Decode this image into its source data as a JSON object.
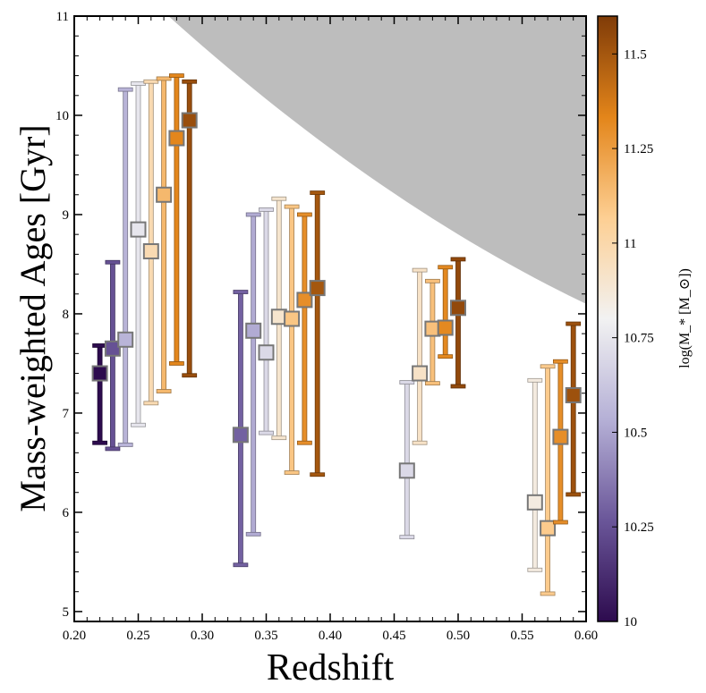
{
  "chart_data": {
    "type": "scatter",
    "title": "",
    "xlabel": "Redshift",
    "ylabel": "Mass-weighted Ages [Gyr]",
    "xlim": [
      0.2,
      0.6
    ],
    "ylim": [
      4.9,
      11.0
    ],
    "x_ticks": [
      "0.20",
      "0.25",
      "0.30",
      "0.35",
      "0.40",
      "0.45",
      "0.50",
      "0.55",
      "0.60"
    ],
    "y_ticks": [
      "5",
      "6",
      "7",
      "8",
      "9",
      "10",
      "11"
    ],
    "colorbar": {
      "label": "log(M_* [M_⊙])",
      "range": [
        10.0,
        11.6
      ],
      "ticks": [
        "10",
        "10.25",
        "10.5",
        "10.75",
        "11",
        "11.25",
        "11.5"
      ],
      "colors": [
        "#2d0b4e",
        "#6a5699",
        "#b5b0d6",
        "#f2f2f2",
        "#fdcf93",
        "#e3851a",
        "#7f3b08"
      ]
    },
    "shaded_region": {
      "description": "age of the universe limit",
      "z": [
        0.2,
        0.6
      ],
      "age_upper": [
        11.9,
        8.1
      ]
    },
    "points": [
      {
        "z": 0.22,
        "age": 7.4,
        "lo": 6.7,
        "hi": 7.68,
        "logM": 10.0
      },
      {
        "z": 0.23,
        "age": 7.65,
        "lo": 6.64,
        "hi": 8.52,
        "logM": 10.25
      },
      {
        "z": 0.24,
        "age": 7.74,
        "lo": 6.68,
        "hi": 10.26,
        "logM": 10.55
      },
      {
        "z": 0.25,
        "age": 8.85,
        "lo": 6.88,
        "hi": 10.32,
        "logM": 10.75
      },
      {
        "z": 0.26,
        "age": 8.63,
        "lo": 7.1,
        "hi": 10.34,
        "logM": 10.98
      },
      {
        "z": 0.27,
        "age": 9.2,
        "lo": 7.22,
        "hi": 10.37,
        "logM": 11.15
      },
      {
        "z": 0.28,
        "age": 9.77,
        "lo": 7.5,
        "hi": 10.4,
        "logM": 11.33
      },
      {
        "z": 0.29,
        "age": 9.95,
        "lo": 7.38,
        "hi": 10.34,
        "logM": 11.53
      },
      {
        "z": 0.33,
        "age": 6.78,
        "lo": 5.47,
        "hi": 8.22,
        "logM": 10.3
      },
      {
        "z": 0.34,
        "age": 7.83,
        "lo": 5.78,
        "hi": 9.0,
        "logM": 10.52
      },
      {
        "z": 0.35,
        "age": 7.61,
        "lo": 6.8,
        "hi": 9.05,
        "logM": 10.7
      },
      {
        "z": 0.36,
        "age": 7.97,
        "lo": 6.75,
        "hi": 9.16,
        "logM": 10.9
      },
      {
        "z": 0.37,
        "age": 7.95,
        "lo": 6.4,
        "hi": 9.08,
        "logM": 11.1
      },
      {
        "z": 0.38,
        "age": 8.14,
        "lo": 6.7,
        "hi": 9.0,
        "logM": 11.3
      },
      {
        "z": 0.39,
        "age": 8.26,
        "lo": 6.38,
        "hi": 9.22,
        "logM": 11.5
      },
      {
        "z": 0.46,
        "age": 6.42,
        "lo": 5.75,
        "hi": 7.31,
        "logM": 10.7
      },
      {
        "z": 0.47,
        "age": 7.4,
        "lo": 6.7,
        "hi": 8.44,
        "logM": 10.92
      },
      {
        "z": 0.48,
        "age": 7.85,
        "lo": 7.3,
        "hi": 8.33,
        "logM": 11.12
      },
      {
        "z": 0.49,
        "age": 7.86,
        "lo": 7.57,
        "hi": 8.47,
        "logM": 11.32
      },
      {
        "z": 0.5,
        "age": 8.06,
        "lo": 7.27,
        "hi": 8.55,
        "logM": 11.55
      },
      {
        "z": 0.56,
        "age": 6.1,
        "lo": 5.42,
        "hi": 7.33,
        "logM": 10.85
      },
      {
        "z": 0.57,
        "age": 5.84,
        "lo": 5.18,
        "hi": 7.47,
        "logM": 11.08
      },
      {
        "z": 0.58,
        "age": 6.76,
        "lo": 5.9,
        "hi": 7.52,
        "logM": 11.3
      },
      {
        "z": 0.59,
        "age": 7.18,
        "lo": 6.18,
        "hi": 7.9,
        "logM": 11.52
      }
    ]
  }
}
